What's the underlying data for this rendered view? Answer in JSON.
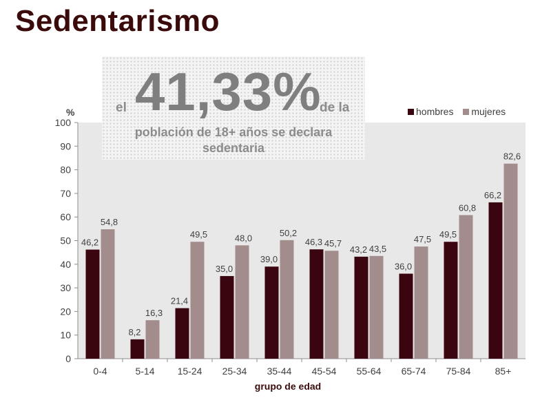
{
  "page": {
    "title": "Sedentarismo"
  },
  "callout": {
    "prefix": "el",
    "value": "41,33%",
    "suffix": "de la",
    "line2": "población de 18+ años se declara",
    "line3": "sedentaria"
  },
  "colors": {
    "title": "#3b0b0b",
    "hombres": "#3b0510",
    "mujeres": "#a38c8c",
    "plot_bg": "#e8e8e8"
  },
  "chart_data": {
    "type": "bar",
    "categories": [
      "0-4",
      "5-14",
      "15-24",
      "25-34",
      "35-44",
      "45-54",
      "55-64",
      "65-74",
      "75-84",
      "85+"
    ],
    "series": [
      {
        "name": "hombres",
        "values": [
          46.2,
          8.2,
          21.4,
          35.0,
          39.0,
          46.3,
          43.2,
          36.0,
          49.5,
          66.2
        ],
        "labels": [
          "46,2",
          "8,2",
          "21,4",
          "35,0",
          "39,0",
          "46,3",
          "43,2",
          "36,0",
          "49,5",
          "66,2"
        ]
      },
      {
        "name": "mujeres",
        "values": [
          54.8,
          16.3,
          49.5,
          48.0,
          50.2,
          45.7,
          43.5,
          47.5,
          60.8,
          82.6
        ],
        "labels": [
          "54,8",
          "16,3",
          "49,5",
          "48,0",
          "50,2",
          "45,7",
          "43,5",
          "47,5",
          "60,8",
          "82,6"
        ]
      }
    ],
    "ylabel": "%",
    "xlabel": "grupo de edad",
    "ylim": [
      0,
      100
    ],
    "yticks": [
      0,
      10,
      20,
      30,
      40,
      50,
      60,
      70,
      80,
      90,
      100
    ],
    "legend": "top-right"
  }
}
